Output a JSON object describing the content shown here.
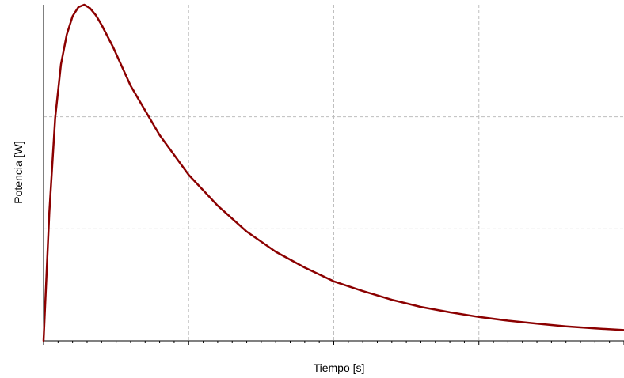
{
  "chart_data": {
    "type": "line",
    "xlabel": "Tiempo [s]",
    "ylabel": "Potencia [W]",
    "xlim": [
      0,
      1
    ],
    "ylim": [
      0,
      1
    ],
    "grid": true,
    "series": [
      {
        "color": "#8b0000",
        "x": [
          0,
          0.01,
          0.02,
          0.03,
          0.04,
          0.05,
          0.06,
          0.07,
          0.08,
          0.09,
          0.1,
          0.12,
          0.15,
          0.2,
          0.25,
          0.3,
          0.35,
          0.4,
          0.45,
          0.5,
          0.55,
          0.6,
          0.65,
          0.7,
          0.75,
          0.8,
          0.85,
          0.9,
          0.95,
          1.0
        ],
        "y": [
          0.0,
          0.382,
          0.664,
          0.823,
          0.911,
          0.966,
          0.993,
          1.0,
          0.99,
          0.969,
          0.94,
          0.873,
          0.759,
          0.612,
          0.494,
          0.402,
          0.325,
          0.265,
          0.218,
          0.177,
          0.148,
          0.122,
          0.101,
          0.085,
          0.071,
          0.06,
          0.051,
          0.043,
          0.037,
          0.032
        ]
      }
    ]
  }
}
